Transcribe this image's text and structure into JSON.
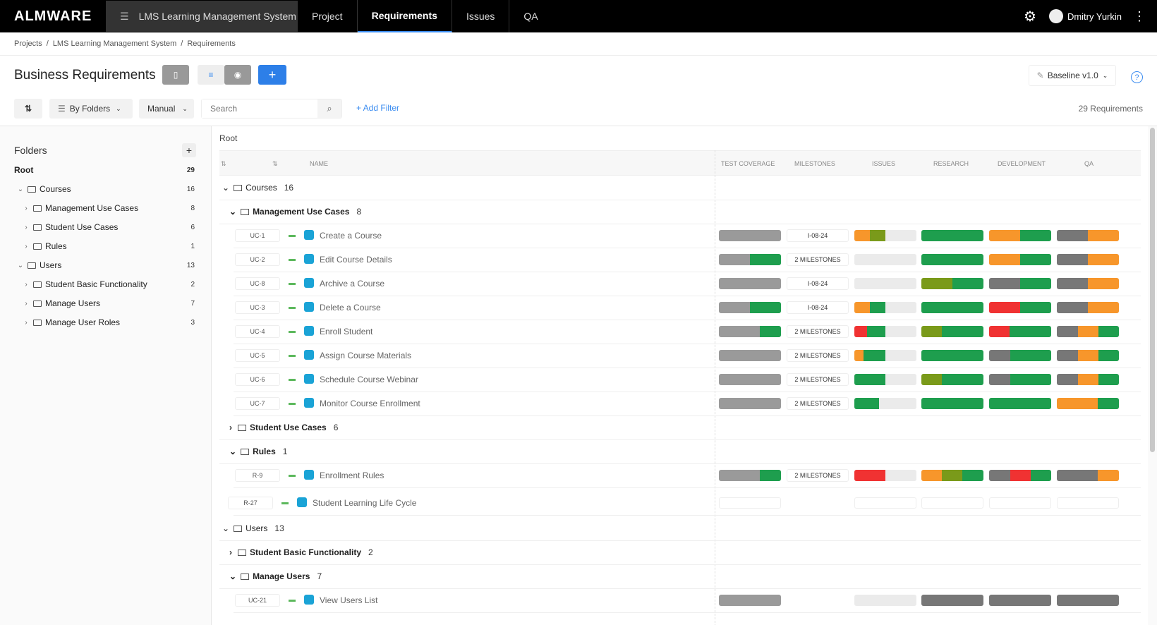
{
  "header": {
    "logo": "ALMWARE",
    "project": "LMS Learning Management System",
    "tabs": [
      "Project",
      "Requirements",
      "Issues",
      "QA"
    ],
    "user": "Dmitry Yurkin"
  },
  "breadcrumb": [
    "Projects",
    "/",
    "LMS Learning Management System",
    "/",
    "Requirements"
  ],
  "page": {
    "title": "Business Requirements",
    "baseline": "Baseline v1.0",
    "group_by": "By Folders",
    "sort": "Manual",
    "search_placeholder": "Search",
    "add_filter": "+ Add Filter",
    "req_count": "29 Requirements"
  },
  "sidebar": {
    "title": "Folders",
    "items": [
      {
        "label": "Root",
        "count": "29"
      },
      {
        "label": "Courses",
        "count": "16"
      },
      {
        "label": "Management Use Cases",
        "count": "8"
      },
      {
        "label": "Student Use Cases",
        "count": "6"
      },
      {
        "label": "Rules",
        "count": "1"
      },
      {
        "label": "Users",
        "count": "13"
      },
      {
        "label": "Student Basic Functionality",
        "count": "2"
      },
      {
        "label": "Manage Users",
        "count": "7"
      },
      {
        "label": "Manage User Roles",
        "count": "3"
      }
    ]
  },
  "table": {
    "root": "Root",
    "columns": [
      "NAME",
      "TEST COVERAGE",
      "MILESTONES",
      "ISSUES",
      "RESEARCH",
      "DEVELOPMENT",
      "QA"
    ],
    "groups": [
      {
        "label": "Courses",
        "count": "16"
      },
      {
        "label": "Management Use Cases",
        "count": "8"
      },
      {
        "label": "Student Use Cases",
        "count": "6"
      },
      {
        "label": "Rules",
        "count": "1"
      },
      {
        "label": "Users",
        "count": "13"
      },
      {
        "label": "Student Basic Functionality",
        "count": "2"
      },
      {
        "label": "Manage Users",
        "count": "7"
      }
    ],
    "rows": [
      {
        "id": "UC-1",
        "name": "Create a Course",
        "milestone": "I-08-24"
      },
      {
        "id": "UC-2",
        "name": "Edit Course Details",
        "milestone": "2 MILESTONES"
      },
      {
        "id": "UC-8",
        "name": "Archive a Course",
        "milestone": "I-08-24"
      },
      {
        "id": "UC-3",
        "name": "Delete a Course",
        "milestone": "I-08-24"
      },
      {
        "id": "UC-4",
        "name": "Enroll Student",
        "milestone": "2 MILESTONES"
      },
      {
        "id": "UC-5",
        "name": "Assign Course Materials",
        "milestone": "2 MILESTONES"
      },
      {
        "id": "UC-6",
        "name": "Schedule Course Webinar",
        "milestone": "2 MILESTONES"
      },
      {
        "id": "UC-7",
        "name": "Monitor Course Enrollment",
        "milestone": "2 MILESTONES"
      },
      {
        "id": "R-9",
        "name": "Enrollment Rules",
        "milestone": "2 MILESTONES"
      },
      {
        "id": "R-27",
        "name": "Student Learning Life Cycle",
        "milestone": ""
      },
      {
        "id": "UC-21",
        "name": "View Users List",
        "milestone": ""
      }
    ]
  },
  "colors": {
    "green": "#1e9e4e",
    "orange": "#f7962b",
    "red": "#f03232",
    "olive": "#7a9a1a",
    "gray": "#9a9a9a",
    "darkgray": "#777777",
    "accent": "#3b8cf0"
  }
}
